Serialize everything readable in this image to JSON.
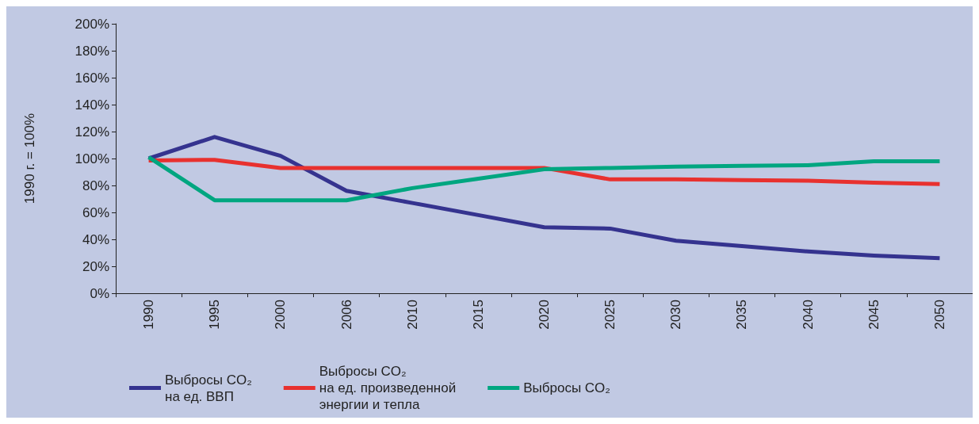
{
  "chart_data": {
    "type": "line",
    "ylabel": "1990 г. = 100%",
    "categories": [
      "1990",
      "1995",
      "2000",
      "2006",
      "2010",
      "2015",
      "2020",
      "2025",
      "2030",
      "2035",
      "2040",
      "2045",
      "2050"
    ],
    "series": [
      {
        "name": "Выбросы CO₂\nна ед. ВВП",
        "color": "#35338f",
        "values": [
          100,
          116,
          102,
          76,
          67,
          58,
          49,
          48,
          39,
          35,
          31,
          28,
          26
        ]
      },
      {
        "name": "Выбросы CO₂\nна ед. произведенной\nэнергии и тепла",
        "color": "#e8312f",
        "values": [
          98.5,
          99,
          93,
          93,
          93,
          93,
          93,
          84.5,
          84.5,
          84,
          83.5,
          82,
          81
        ]
      },
      {
        "name": "Выбросы CO₂",
        "color": "#00a680",
        "values": [
          101,
          69,
          69,
          69,
          78,
          85,
          92,
          93,
          94,
          94.5,
          95,
          98,
          98
        ]
      }
    ],
    "ylim": [
      0,
      200
    ],
    "yticks": [
      {
        "value": 0,
        "label": "0%"
      },
      {
        "value": 20,
        "label": "20%"
      },
      {
        "value": 40,
        "label": "40%"
      },
      {
        "value": 60,
        "label": "60%"
      },
      {
        "value": 80,
        "label": "80%"
      },
      {
        "value": 100,
        "label": "100%"
      },
      {
        "value": 120,
        "label": "120%"
      },
      {
        "value": 140,
        "label": "140%"
      },
      {
        "value": 160,
        "label": "160%"
      },
      {
        "value": 180,
        "label": "180%"
      },
      {
        "value": 200,
        "label": "200%"
      }
    ],
    "grid": false,
    "legend": "bottom",
    "marker": "none",
    "line_style": "solid"
  }
}
